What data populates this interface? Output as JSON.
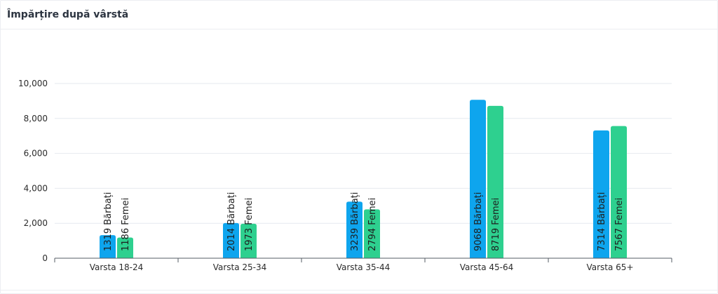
{
  "header": {
    "title": "Împărțire după vârstă"
  },
  "chart_data": {
    "type": "bar",
    "title": "Împărțire după vârstă",
    "categories": [
      "Varsta 18-24",
      "Varsta 25-34",
      "Varsta 35-44",
      "Varsta 45-64",
      "Varsta 65+"
    ],
    "series": [
      {
        "name": "Bărbați",
        "color": "#0ea5ee",
        "values": [
          1319,
          2014,
          3239,
          9068,
          7314
        ]
      },
      {
        "name": "Femei",
        "color": "#2ed08f",
        "values": [
          1186,
          1973,
          2794,
          8719,
          7567
        ]
      }
    ],
    "ylim": [
      0,
      10000
    ],
    "yticks": [
      0,
      2000,
      4000,
      6000,
      8000,
      10000
    ],
    "ytick_labels": [
      "0",
      "2,000",
      "4,000",
      "6,000",
      "8,000",
      "10,000"
    ],
    "grid": true,
    "legend": "none",
    "xlabel": "",
    "ylabel": ""
  }
}
